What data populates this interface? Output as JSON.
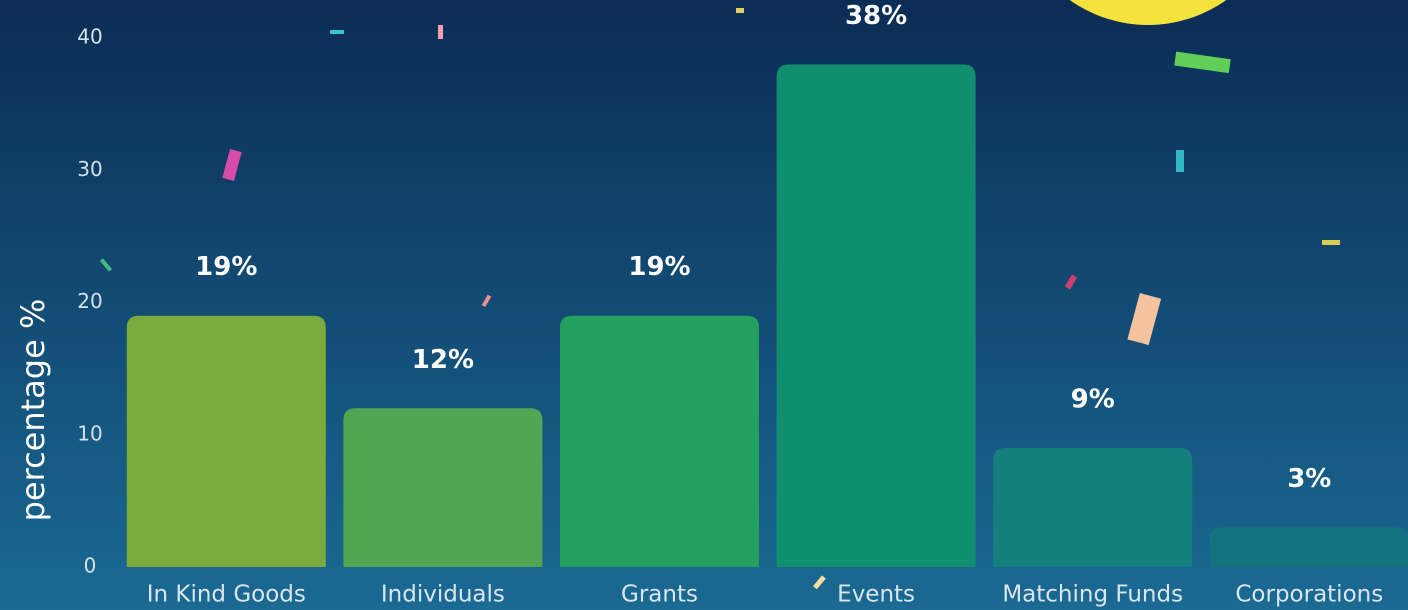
{
  "chart_data": {
    "type": "bar",
    "y_label": "percentage %",
    "categories": [
      "In Kind Goods",
      "Individuals",
      "Grants",
      "Events",
      "Matching Funds",
      "Corporations"
    ],
    "values": [
      19,
      12,
      19,
      38,
      9,
      3
    ],
    "value_labels": [
      "19%",
      "12%",
      "19%",
      "38%",
      "9%",
      "3%"
    ],
    "colors": [
      "#7bab3c",
      "#52a553",
      "#24a05f",
      "#0f8f6d",
      "#147f7c",
      "#15737f"
    ],
    "ylim": [
      0,
      40
    ],
    "yticks": [
      0,
      10,
      20,
      30,
      40
    ]
  }
}
